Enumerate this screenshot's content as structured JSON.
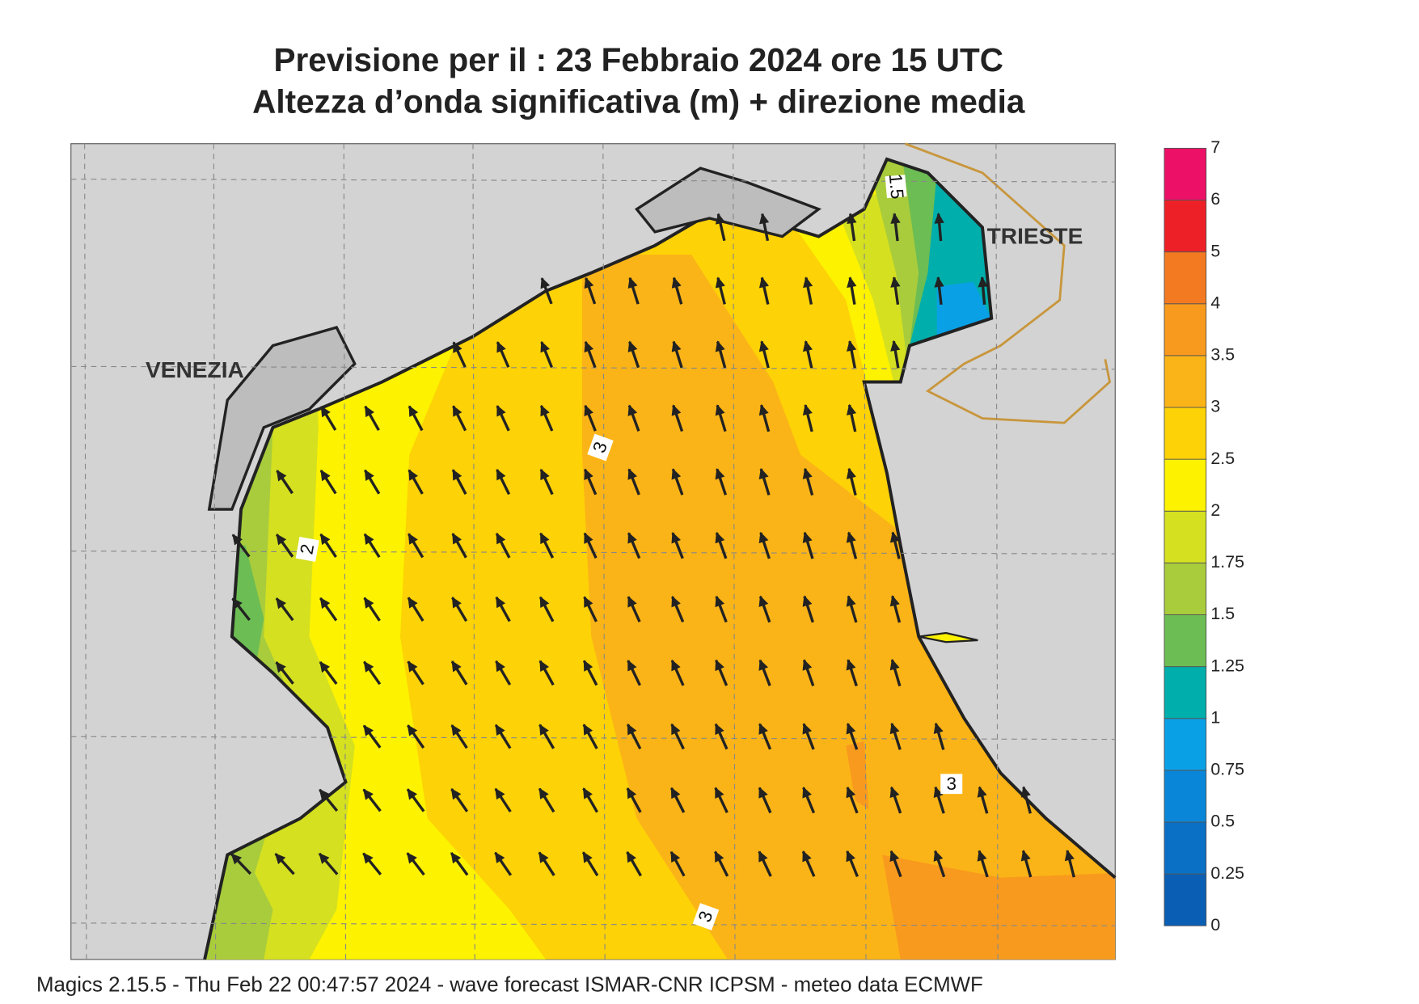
{
  "header": {
    "title": "Previsione per il  :  23  Febbraio 2024   ore 15 UTC",
    "subtitle": "Altezza d’onda significativa (m) + direzione media"
  },
  "map": {
    "cities": [
      "VENEZIA",
      "TRIESTE"
    ],
    "contour_labels": [
      "3",
      "2",
      "1.5",
      "3",
      "3"
    ]
  },
  "colorbar": {
    "levels": [
      0,
      0.25,
      0.5,
      0.75,
      1,
      1.25,
      1.5,
      1.75,
      2,
      2.5,
      3,
      3.5,
      4,
      5,
      6,
      7
    ],
    "colors": [
      "#0a5fb4",
      "#0a70c6",
      "#0a86d8",
      "#0aa0e6",
      "#00aeab",
      "#6cbd53",
      "#a8cc3c",
      "#d4e020",
      "#fdf200",
      "#fdd206",
      "#fbb417",
      "#f89a1e",
      "#f37a20",
      "#ee2027",
      "#ec1167"
    ]
  },
  "footer": "Magics 2.15.5 - Thu Feb 22 00:47:57 2024 - wave forecast  ISMAR-CNR  ICPSM - meteo data    ECMWF"
}
